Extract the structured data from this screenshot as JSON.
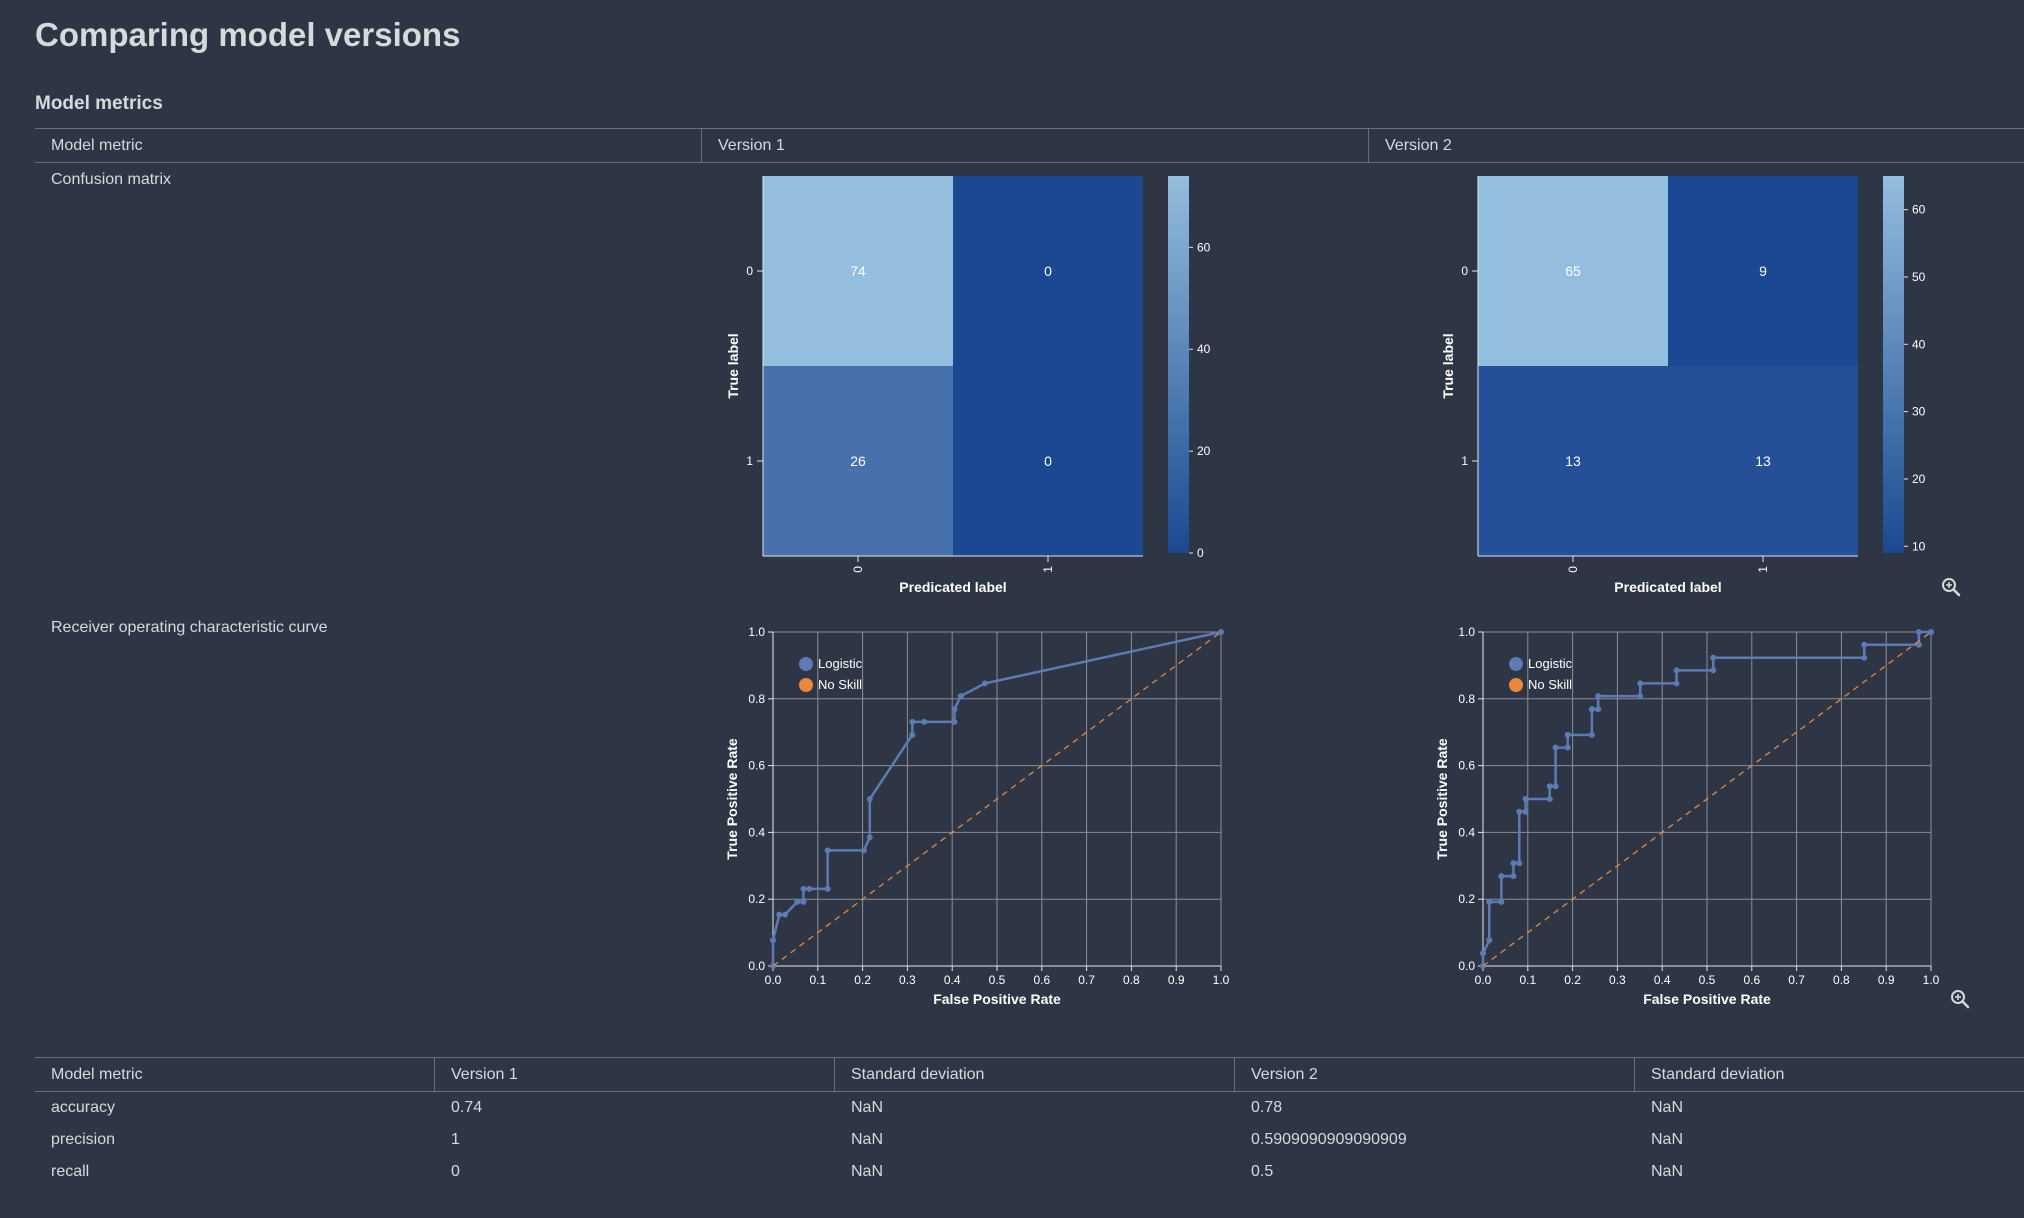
{
  "page": {
    "title": "Comparing model versions",
    "section": "Model metrics"
  },
  "metrics_table": {
    "headers": [
      "Model metric",
      "Version 1",
      "Version 2"
    ],
    "rows": [
      {
        "label": "Confusion matrix"
      },
      {
        "label": "Receiver operating characteristic curve"
      }
    ]
  },
  "chart_data": [
    {
      "type": "heatmap",
      "id": "confusion-matrix-v1",
      "x_categories": [
        "0",
        "1"
      ],
      "y_categories": [
        "0",
        "1"
      ],
      "values": [
        [
          74,
          0
        ],
        [
          26,
          0
        ]
      ],
      "xlabel": "Predicated label",
      "ylabel": "True label",
      "colorbar": {
        "min": 0,
        "max": 74,
        "ticks": [
          0,
          20,
          40,
          60
        ]
      }
    },
    {
      "type": "heatmap",
      "id": "confusion-matrix-v2",
      "x_categories": [
        "0",
        "1"
      ],
      "y_categories": [
        "0",
        "1"
      ],
      "values": [
        [
          65,
          9
        ],
        [
          13,
          13
        ]
      ],
      "xlabel": "Predicated label",
      "ylabel": "True label",
      "colorbar": {
        "min": 9,
        "max": 65,
        "ticks": [
          10,
          20,
          30,
          40,
          50,
          60
        ]
      }
    },
    {
      "type": "line",
      "id": "roc-v1",
      "xlabel": "False Positive Rate",
      "ylabel": "True Positive Rate",
      "xlim": [
        0,
        1
      ],
      "ylim": [
        0,
        1
      ],
      "xticks": [
        "0.0",
        "0.1",
        "0.2",
        "0.3",
        "0.4",
        "0.5",
        "0.6",
        "0.7",
        "0.8",
        "0.9",
        "1.0"
      ],
      "yticks": [
        "0.0",
        "0.2",
        "0.4",
        "0.6",
        "0.8",
        "1.0"
      ],
      "grid": true,
      "legend": "top-left",
      "series": [
        {
          "name": "Logistic",
          "color": "#5b7bb5",
          "x": [
            0,
            0,
            0.014,
            0.027,
            0.054,
            0.068,
            0.068,
            0.081,
            0.122,
            0.122,
            0.203,
            0.216,
            0.216,
            0.311,
            0.311,
            0.338,
            0.405,
            0.405,
            0.419,
            0.473,
            1.0
          ],
          "y": [
            0,
            0.077,
            0.154,
            0.154,
            0.192,
            0.192,
            0.231,
            0.231,
            0.231,
            0.346,
            0.346,
            0.385,
            0.5,
            0.692,
            0.731,
            0.731,
            0.731,
            0.769,
            0.808,
            0.846,
            1.0
          ]
        },
        {
          "name": "No Skill",
          "color": "#e8883a",
          "x": [
            0,
            1
          ],
          "y": [
            0,
            1
          ]
        }
      ]
    },
    {
      "type": "line",
      "id": "roc-v2",
      "xlabel": "False Positive Rate",
      "ylabel": "True Positive Rate",
      "xlim": [
        0,
        1
      ],
      "ylim": [
        0,
        1
      ],
      "xticks": [
        "0.0",
        "0.1",
        "0.2",
        "0.3",
        "0.4",
        "0.5",
        "0.6",
        "0.7",
        "0.8",
        "0.9",
        "1.0"
      ],
      "yticks": [
        "0.0",
        "0.2",
        "0.4",
        "0.6",
        "0.8",
        "1.0"
      ],
      "grid": true,
      "legend": "top-left",
      "series": [
        {
          "name": "Logistic",
          "color": "#5b7bb5",
          "x": [
            0,
            0,
            0.014,
            0.014,
            0.041,
            0.041,
            0.068,
            0.068,
            0.081,
            0.081,
            0.095,
            0.095,
            0.149,
            0.149,
            0.162,
            0.162,
            0.189,
            0.189,
            0.243,
            0.243,
            0.257,
            0.257,
            0.351,
            0.351,
            0.432,
            0.432,
            0.514,
            0.514,
            0.851,
            0.851,
            0.973,
            0.973,
            1.0
          ],
          "y": [
            0,
            0.038,
            0.077,
            0.192,
            0.192,
            0.269,
            0.269,
            0.308,
            0.308,
            0.462,
            0.462,
            0.5,
            0.5,
            0.538,
            0.538,
            0.654,
            0.654,
            0.692,
            0.692,
            0.769,
            0.769,
            0.808,
            0.808,
            0.846,
            0.846,
            0.885,
            0.885,
            0.923,
            0.923,
            0.962,
            0.962,
            1.0,
            1.0
          ]
        },
        {
          "name": "No Skill",
          "color": "#e8883a",
          "x": [
            0,
            1
          ],
          "y": [
            0,
            1
          ]
        }
      ]
    }
  ],
  "stats_table": {
    "headers": [
      "Model metric",
      "Version 1",
      "Standard deviation",
      "Version 2",
      "Standard deviation"
    ],
    "rows": [
      [
        "accuracy",
        "0.74",
        "NaN",
        "0.78",
        "NaN"
      ],
      [
        "precision",
        "1",
        "NaN",
        "0.5909090909090909",
        "NaN"
      ],
      [
        "recall",
        "0",
        "NaN",
        "0.5",
        "NaN"
      ]
    ]
  },
  "icons": {
    "zoom": "zoom-in-icon"
  }
}
